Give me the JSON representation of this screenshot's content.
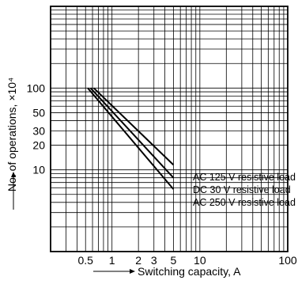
{
  "chart_data": {
    "type": "line",
    "x_scale": "log",
    "y_scale": "log",
    "xlim": [
      0.2,
      100
    ],
    "ylim": [
      1,
      1000
    ],
    "xlabel": "Switching capacity, A",
    "ylabel": "No. of operations, ×10⁴",
    "x_ticks": [
      {
        "value": 0.5,
        "label": "0.5"
      },
      {
        "value": 1,
        "label": "1"
      },
      {
        "value": 2,
        "label": "2"
      },
      {
        "value": 3,
        "label": "3"
      },
      {
        "value": 5,
        "label": "5"
      },
      {
        "value": 10,
        "label": "10"
      },
      {
        "value": 100,
        "label": "100"
      }
    ],
    "y_ticks": [
      {
        "value": 10,
        "label": "10"
      },
      {
        "value": 20,
        "label": "20"
      },
      {
        "value": 30,
        "label": "30"
      },
      {
        "value": 50,
        "label": "50"
      },
      {
        "value": 100,
        "label": "100"
      }
    ],
    "grid": true,
    "series": [
      {
        "name": "AC 125 V resistive load",
        "x": [
          0.62,
          5.0
        ],
        "y": [
          100,
          11.5
        ]
      },
      {
        "name": "DC 30 V resistive load",
        "x": [
          0.57,
          5.0
        ],
        "y": [
          100,
          8.0
        ]
      },
      {
        "name": "AC 250 V resistive load",
        "x": [
          0.53,
          5.0
        ],
        "y": [
          100,
          5.8
        ]
      }
    ]
  }
}
